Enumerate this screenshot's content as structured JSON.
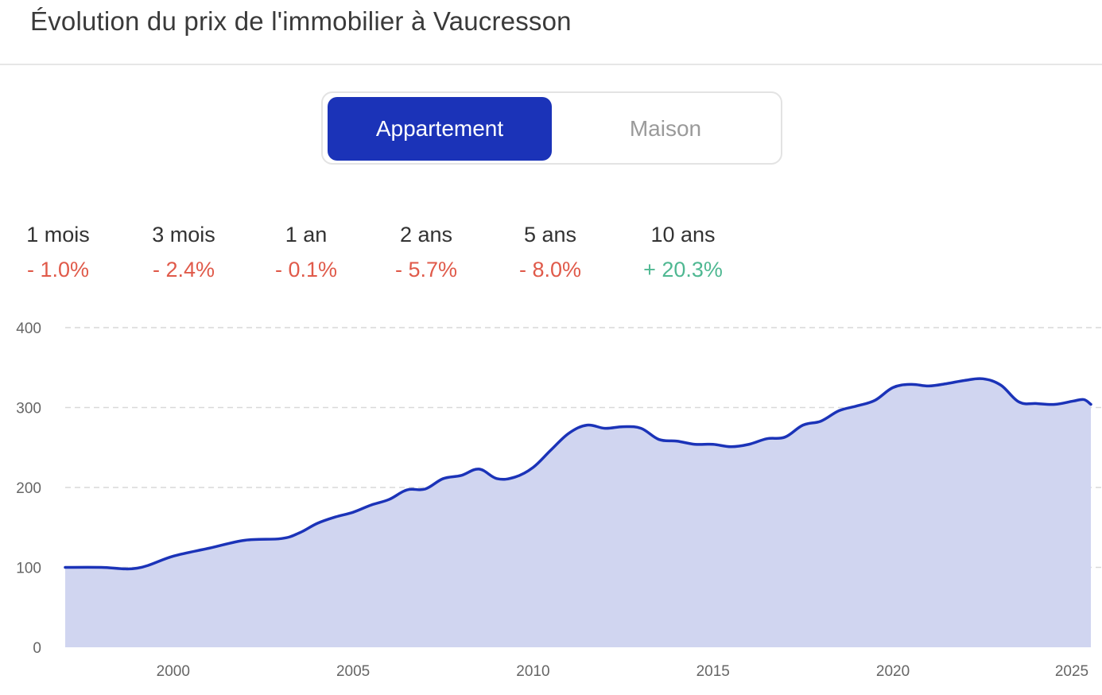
{
  "title": "Évolution du prix de l'immobilier à Vaucresson",
  "toggle": {
    "options": [
      "Appartement",
      "Maison"
    ],
    "selected": "Appartement",
    "active_color": "#1b33b8"
  },
  "stats": [
    {
      "label": "1 mois",
      "value": "- 1.0%",
      "trend": "negative"
    },
    {
      "label": "3 mois",
      "value": "- 2.4%",
      "trend": "negative"
    },
    {
      "label": "1 an",
      "value": "- 0.1%",
      "trend": "negative"
    },
    {
      "label": "2 ans",
      "value": "- 5.7%",
      "trend": "negative"
    },
    {
      "label": "5 ans",
      "value": "- 8.0%",
      "trend": "negative"
    },
    {
      "label": "10 ans",
      "value": "+ 20.3%",
      "trend": "positive"
    }
  ],
  "colors": {
    "negative": "#e05a4a",
    "positive": "#4fb892",
    "line": "#1b33b8",
    "area": "#d0d5f0"
  },
  "chart_data": {
    "type": "area",
    "title": "",
    "xlabel": "",
    "ylabel": "",
    "xlim": [
      1997.0,
      2025.5
    ],
    "ylim": [
      0,
      400
    ],
    "yticks": [
      0,
      100,
      200,
      300,
      400
    ],
    "xticks": [
      2000,
      2005,
      2010,
      2015,
      2020,
      2025
    ],
    "grid": "horizontal-dashed",
    "legend": "none",
    "x": [
      1997.0,
      1998.0,
      1999.0,
      2000.0,
      2001.0,
      2002.0,
      2003.0,
      2003.5,
      2004.0,
      2004.5,
      2005.0,
      2005.5,
      2006.0,
      2006.5,
      2007.0,
      2007.5,
      2008.0,
      2008.5,
      2009.0,
      2009.5,
      2010.0,
      2010.5,
      2011.0,
      2011.5,
      2012.0,
      2012.5,
      2013.0,
      2013.5,
      2014.0,
      2014.5,
      2015.0,
      2015.5,
      2016.0,
      2016.5,
      2017.0,
      2017.5,
      2018.0,
      2018.5,
      2019.0,
      2019.5,
      2020.0,
      2020.5,
      2021.0,
      2021.5,
      2022.0,
      2022.5,
      2023.0,
      2023.5,
      2024.0,
      2024.5,
      2025.0,
      2025.3,
      2025.5
    ],
    "y": [
      100,
      100,
      99,
      114,
      124,
      134,
      136,
      143,
      155,
      163,
      169,
      178,
      185,
      197,
      198,
      211,
      215,
      223,
      211,
      213,
      225,
      247,
      268,
      278,
      274,
      276,
      274,
      260,
      258,
      254,
      254,
      251,
      254,
      261,
      263,
      278,
      283,
      296,
      302,
      309,
      325,
      329,
      327,
      330,
      334,
      336,
      328,
      307,
      305,
      304,
      308,
      310,
      304
    ]
  },
  "axis": {
    "y_labels": [
      "0",
      "100",
      "200",
      "300",
      "400"
    ],
    "x_labels": [
      "2000",
      "2005",
      "2010",
      "2015",
      "2020",
      "2025"
    ]
  }
}
